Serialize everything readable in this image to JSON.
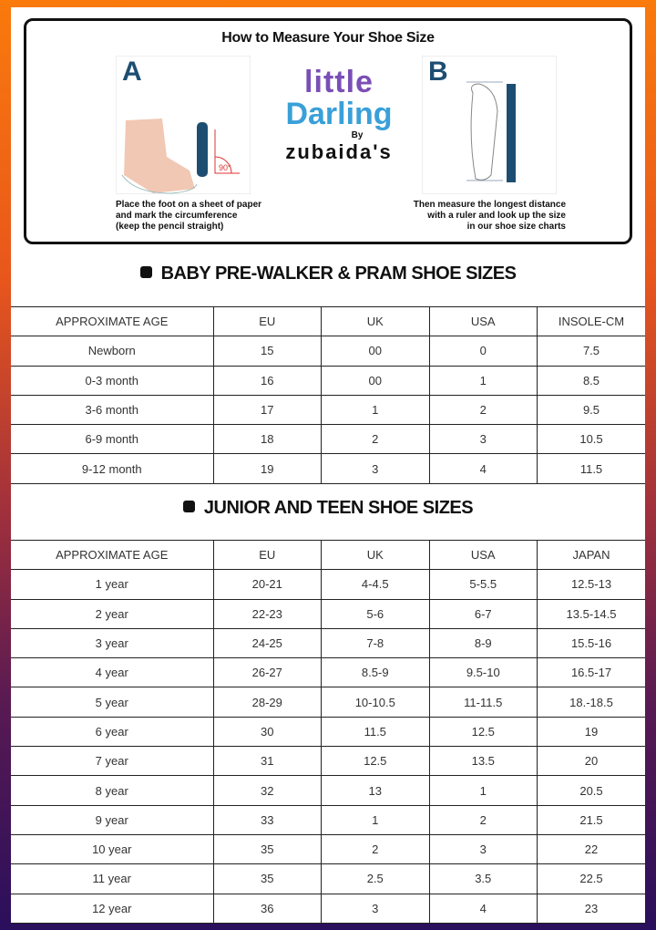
{
  "guide": {
    "title": "How to Measure Your Shoe Size",
    "a_label": "A",
    "b_label": "B",
    "angle_label": "90°",
    "a_caption": [
      "Place the foot on a sheet of paper",
      "and mark the circumference",
      "(keep the pencil straight)"
    ],
    "b_caption": [
      "Then measure the longest distance",
      "with a ruler and look up the size",
      "in our shoe size charts"
    ],
    "logo": {
      "line1": "little",
      "line2": "Darling",
      "by": "By",
      "brand": "zubaida's"
    }
  },
  "baby": {
    "title": "BABY PRE-WALKER & PRAM SHOE SIZES",
    "headers": [
      "APPROXIMATE AGE",
      "EU",
      "UK",
      "USA",
      "INSOLE-CM"
    ],
    "rows": [
      [
        "Newborn",
        "15",
        "00",
        "0",
        "7.5"
      ],
      [
        "0-3 month",
        "16",
        "00",
        "1",
        "8.5"
      ],
      [
        "3-6 month",
        "17",
        "1",
        "2",
        "9.5"
      ],
      [
        "6-9 month",
        "18",
        "2",
        "3",
        "10.5"
      ],
      [
        "9-12 month",
        "19",
        "3",
        "4",
        "11.5"
      ]
    ]
  },
  "junior": {
    "title": "JUNIOR AND TEEN SHOE SIZES",
    "headers": [
      "APPROXIMATE AGE",
      "EU",
      "UK",
      "USA",
      "JAPAN"
    ],
    "rows": [
      [
        "1 year",
        "20-21",
        "4-4.5",
        "5-5.5",
        "12.5-13"
      ],
      [
        "2 year",
        "22-23",
        "5-6",
        "6-7",
        "13.5-14.5"
      ],
      [
        "3 year",
        "24-25",
        "7-8",
        "8-9",
        "15.5-16"
      ],
      [
        "4 year",
        "26-27",
        "8.5-9",
        "9.5-10",
        "16.5-17"
      ],
      [
        "5 year",
        "28-29",
        "10-10.5",
        "11-11.5",
        "18.-18.5"
      ],
      [
        "6 year",
        "30",
        "11.5",
        "12.5",
        "19"
      ],
      [
        "7 year",
        "31",
        "12.5",
        "13.5",
        "20"
      ],
      [
        "8 year",
        "32",
        "13",
        "1",
        "20.5"
      ],
      [
        "9 year",
        "33",
        "1",
        "2",
        "21.5"
      ],
      [
        "10 year",
        "35",
        "2",
        "3",
        "22"
      ],
      [
        "11 year",
        "35",
        "2.5",
        "3.5",
        "22.5"
      ],
      [
        "12 year",
        "36",
        "3",
        "4",
        "23"
      ]
    ]
  }
}
